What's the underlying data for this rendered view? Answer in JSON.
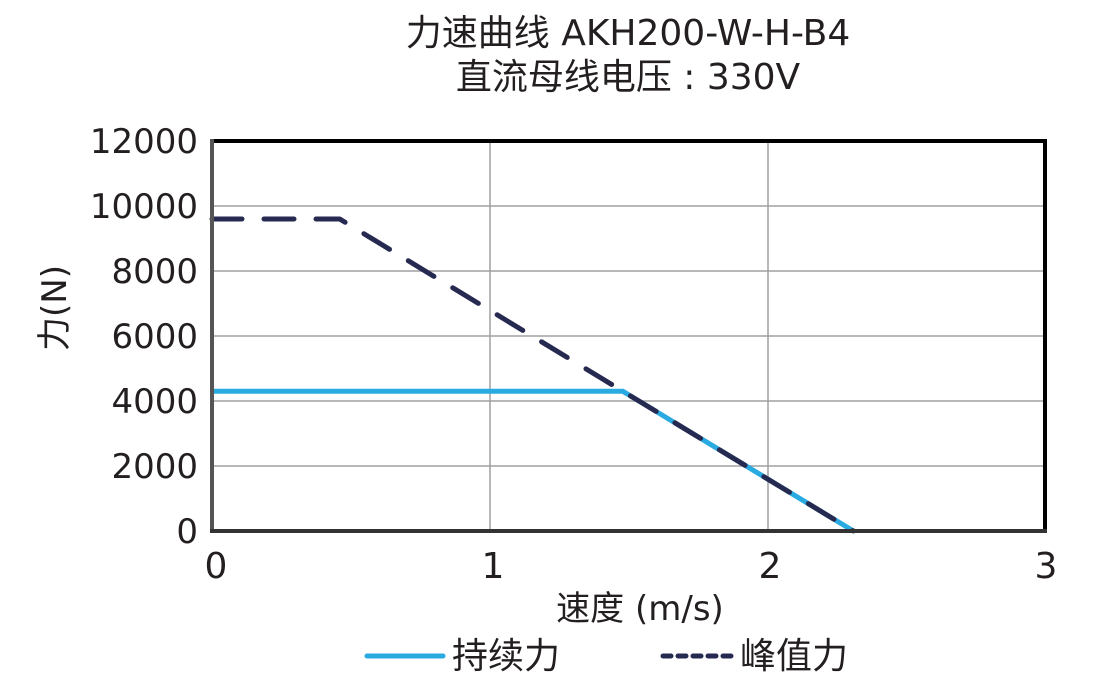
{
  "title": {
    "line1": "力速曲线 AKH200-W-H-B4",
    "line2": "直流母线电压 : 330V"
  },
  "colors": {
    "continuous": "#29aae1",
    "peak": "#262a51",
    "grid": "#a0a0a0",
    "frame": "#000000"
  },
  "axes": {
    "xlabel": "速度 (m/s)",
    "ylabel": "力(N)",
    "xticks": [
      "0",
      "1",
      "2",
      "3"
    ],
    "yticks": [
      "12000",
      "10000",
      "8000",
      "6000",
      "4000",
      "2000",
      "0"
    ]
  },
  "legend": {
    "continuous_label": "持续力",
    "peak_label": "峰值力"
  },
  "chart_data": {
    "type": "line",
    "title": "力速曲线 AKH200-W-H-B4",
    "subtitle": "直流母线电压 : 330V",
    "xlabel": "速度 (m/s)",
    "ylabel": "力(N)",
    "xlim": [
      0,
      3
    ],
    "ylim": [
      0,
      12000
    ],
    "x_ticks": [
      0,
      1,
      2,
      3
    ],
    "y_ticks": [
      0,
      2000,
      4000,
      6000,
      8000,
      10000,
      12000
    ],
    "grid": true,
    "legend_position": "bottom",
    "series": [
      {
        "name": "持续力",
        "style": "solid",
        "color": "#29aae1",
        "points": [
          [
            0,
            4300
          ],
          [
            1.48,
            4300
          ],
          [
            2.31,
            0
          ]
        ]
      },
      {
        "name": "峰值力",
        "style": "dashed",
        "color": "#262a51",
        "points": [
          [
            0,
            9600
          ],
          [
            0.46,
            9600
          ],
          [
            1.48,
            4300
          ],
          [
            2.31,
            0
          ]
        ]
      }
    ]
  }
}
